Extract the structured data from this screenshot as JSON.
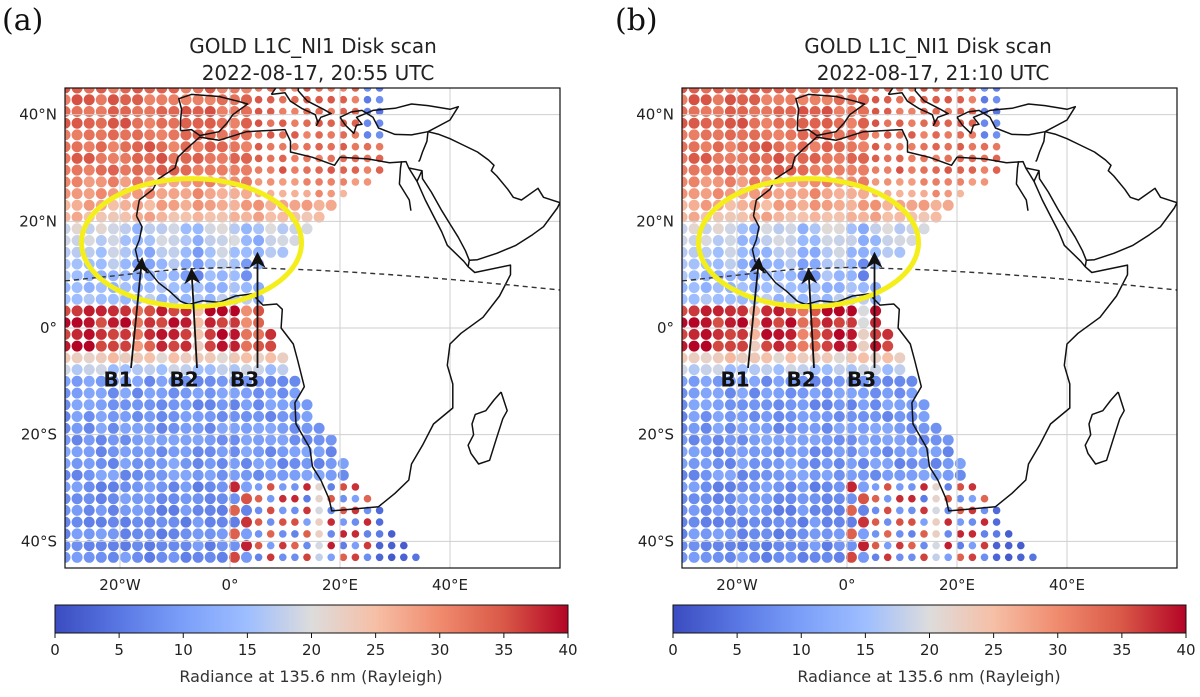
{
  "figure": {
    "colormap": "coolwarm",
    "colors": {
      "low": "#3b4cc0",
      "mid": "#dddcdc",
      "high": "#b40426",
      "ellipse": "#f4ee1a",
      "coast": "#111111",
      "grid": "#d0d0d0"
    }
  },
  "chart_data": [
    {
      "panel_label": "(a)",
      "type": "heatmap",
      "title": "GOLD L1C_NI1 Disk scan",
      "subtitle": "2022-08-17, 20:55 UTC",
      "xlim": [
        -30,
        60
      ],
      "ylim": [
        -45,
        45
      ],
      "x_ticks": [
        -20,
        0,
        20,
        40
      ],
      "x_tick_labels": [
        "20°W",
        "0°",
        "20°E",
        "40°E"
      ],
      "y_ticks": [
        40,
        20,
        0,
        -20,
        -40
      ],
      "y_tick_labels": [
        "40°N",
        "20°N",
        "0°",
        "20°S",
        "40°S"
      ],
      "grid": true,
      "colorbar": {
        "label": "Radiance at 135.6 nm (Rayleigh)",
        "range": [
          0,
          40
        ],
        "ticks": [
          "0",
          "5",
          "10",
          "15",
          "20",
          "25",
          "30",
          "35",
          "40"
        ]
      },
      "features": {
        "north_crest_band": [
          10,
          38
        ],
        "equatorial_trough": [
          9,
          22
        ],
        "south_crest_band": [
          -5,
          2
        ],
        "bubble_longitudes": [
          -16,
          -6,
          4
        ]
      },
      "annotations": [
        {
          "text": "B1",
          "lon": -23,
          "lat": -11,
          "arrow_to": [
            -16,
            13
          ]
        },
        {
          "text": "B2",
          "lon": -11,
          "lat": -11,
          "arrow_to": [
            -7,
            11
          ]
        },
        {
          "text": "B3",
          "lon": 0,
          "lat": -11,
          "arrow_to": [
            5,
            14
          ]
        }
      ],
      "highlight_ellipse": {
        "lon": -7,
        "lat": 16,
        "rx": 20,
        "ry": 12
      }
    },
    {
      "panel_label": "(b)",
      "type": "heatmap",
      "title": "GOLD L1C_NI1 Disk scan",
      "subtitle": "2022-08-17, 21:10 UTC",
      "xlim": [
        -30,
        60
      ],
      "ylim": [
        -45,
        45
      ],
      "x_ticks": [
        -20,
        0,
        20,
        40
      ],
      "x_tick_labels": [
        "20°W",
        "0°",
        "20°E",
        "40°E"
      ],
      "y_ticks": [
        40,
        20,
        0,
        -20,
        -40
      ],
      "y_tick_labels": [
        "40°N",
        "20°N",
        "0°",
        "20°S",
        "40°S"
      ],
      "grid": true,
      "colorbar": {
        "label": "Radiance at 135.6 nm (Rayleigh)",
        "range": [
          0,
          40
        ],
        "ticks": [
          "0",
          "5",
          "10",
          "15",
          "20",
          "25",
          "30",
          "35",
          "40"
        ]
      },
      "features": {
        "north_crest_band": [
          10,
          38
        ],
        "equatorial_trough": [
          9,
          22
        ],
        "south_crest_band": [
          -5,
          2
        ],
        "bubble_longitudes": [
          -17,
          -7,
          3
        ]
      },
      "annotations": [
        {
          "text": "B1",
          "lon": -23,
          "lat": -11,
          "arrow_to": [
            -16,
            13
          ]
        },
        {
          "text": "B2",
          "lon": -11,
          "lat": -11,
          "arrow_to": [
            -7,
            11
          ]
        },
        {
          "text": "B3",
          "lon": 0,
          "lat": -11,
          "arrow_to": [
            5,
            14
          ]
        }
      ],
      "highlight_ellipse": {
        "lon": -7,
        "lat": 16,
        "rx": 20,
        "ry": 12
      }
    }
  ]
}
